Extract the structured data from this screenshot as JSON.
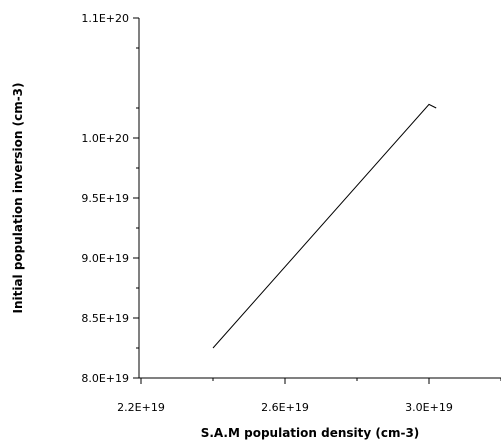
{
  "chart_data": {
    "type": "line",
    "xlabel": "S.A.M population density  (cm-3)",
    "ylabel": "Initial population inversion (cm-3)",
    "xlim": [
      2.2e+19,
      3.4e+19
    ],
    "ylim": [
      8e+19,
      1.1e+20
    ],
    "x_major_ticks": [
      2.2e+19,
      2.6e+19,
      3e+19
    ],
    "x_major_tick_labels": [
      "2.2E+19",
      "2.6E+19",
      "3.0E+19"
    ],
    "x_minor_ticks": [
      2.4e+19,
      2.8e+19,
      3.2e+19
    ],
    "y_major_ticks": [
      8e+19,
      8.5e+19,
      9e+19,
      9.5e+19,
      1e+20,
      1.1e+20
    ],
    "y_major_tick_labels": [
      "8.0E+19",
      "8.5E+19",
      "9.0E+19",
      "9.5E+19",
      "1.0E+20",
      "1.1E+20"
    ],
    "y_minor_ticks": [
      8.25e+19,
      8.75e+19,
      9.25e+19,
      9.75e+19,
      1.025e+20,
      1.075e+20
    ],
    "grid": false,
    "series": [
      {
        "color": "#000000",
        "x": [
          2.4e+19,
          3e+19,
          3.02e+19
        ],
        "y": [
          8.25e+19,
          1.028e+20,
          1.025e+20
        ]
      }
    ]
  }
}
